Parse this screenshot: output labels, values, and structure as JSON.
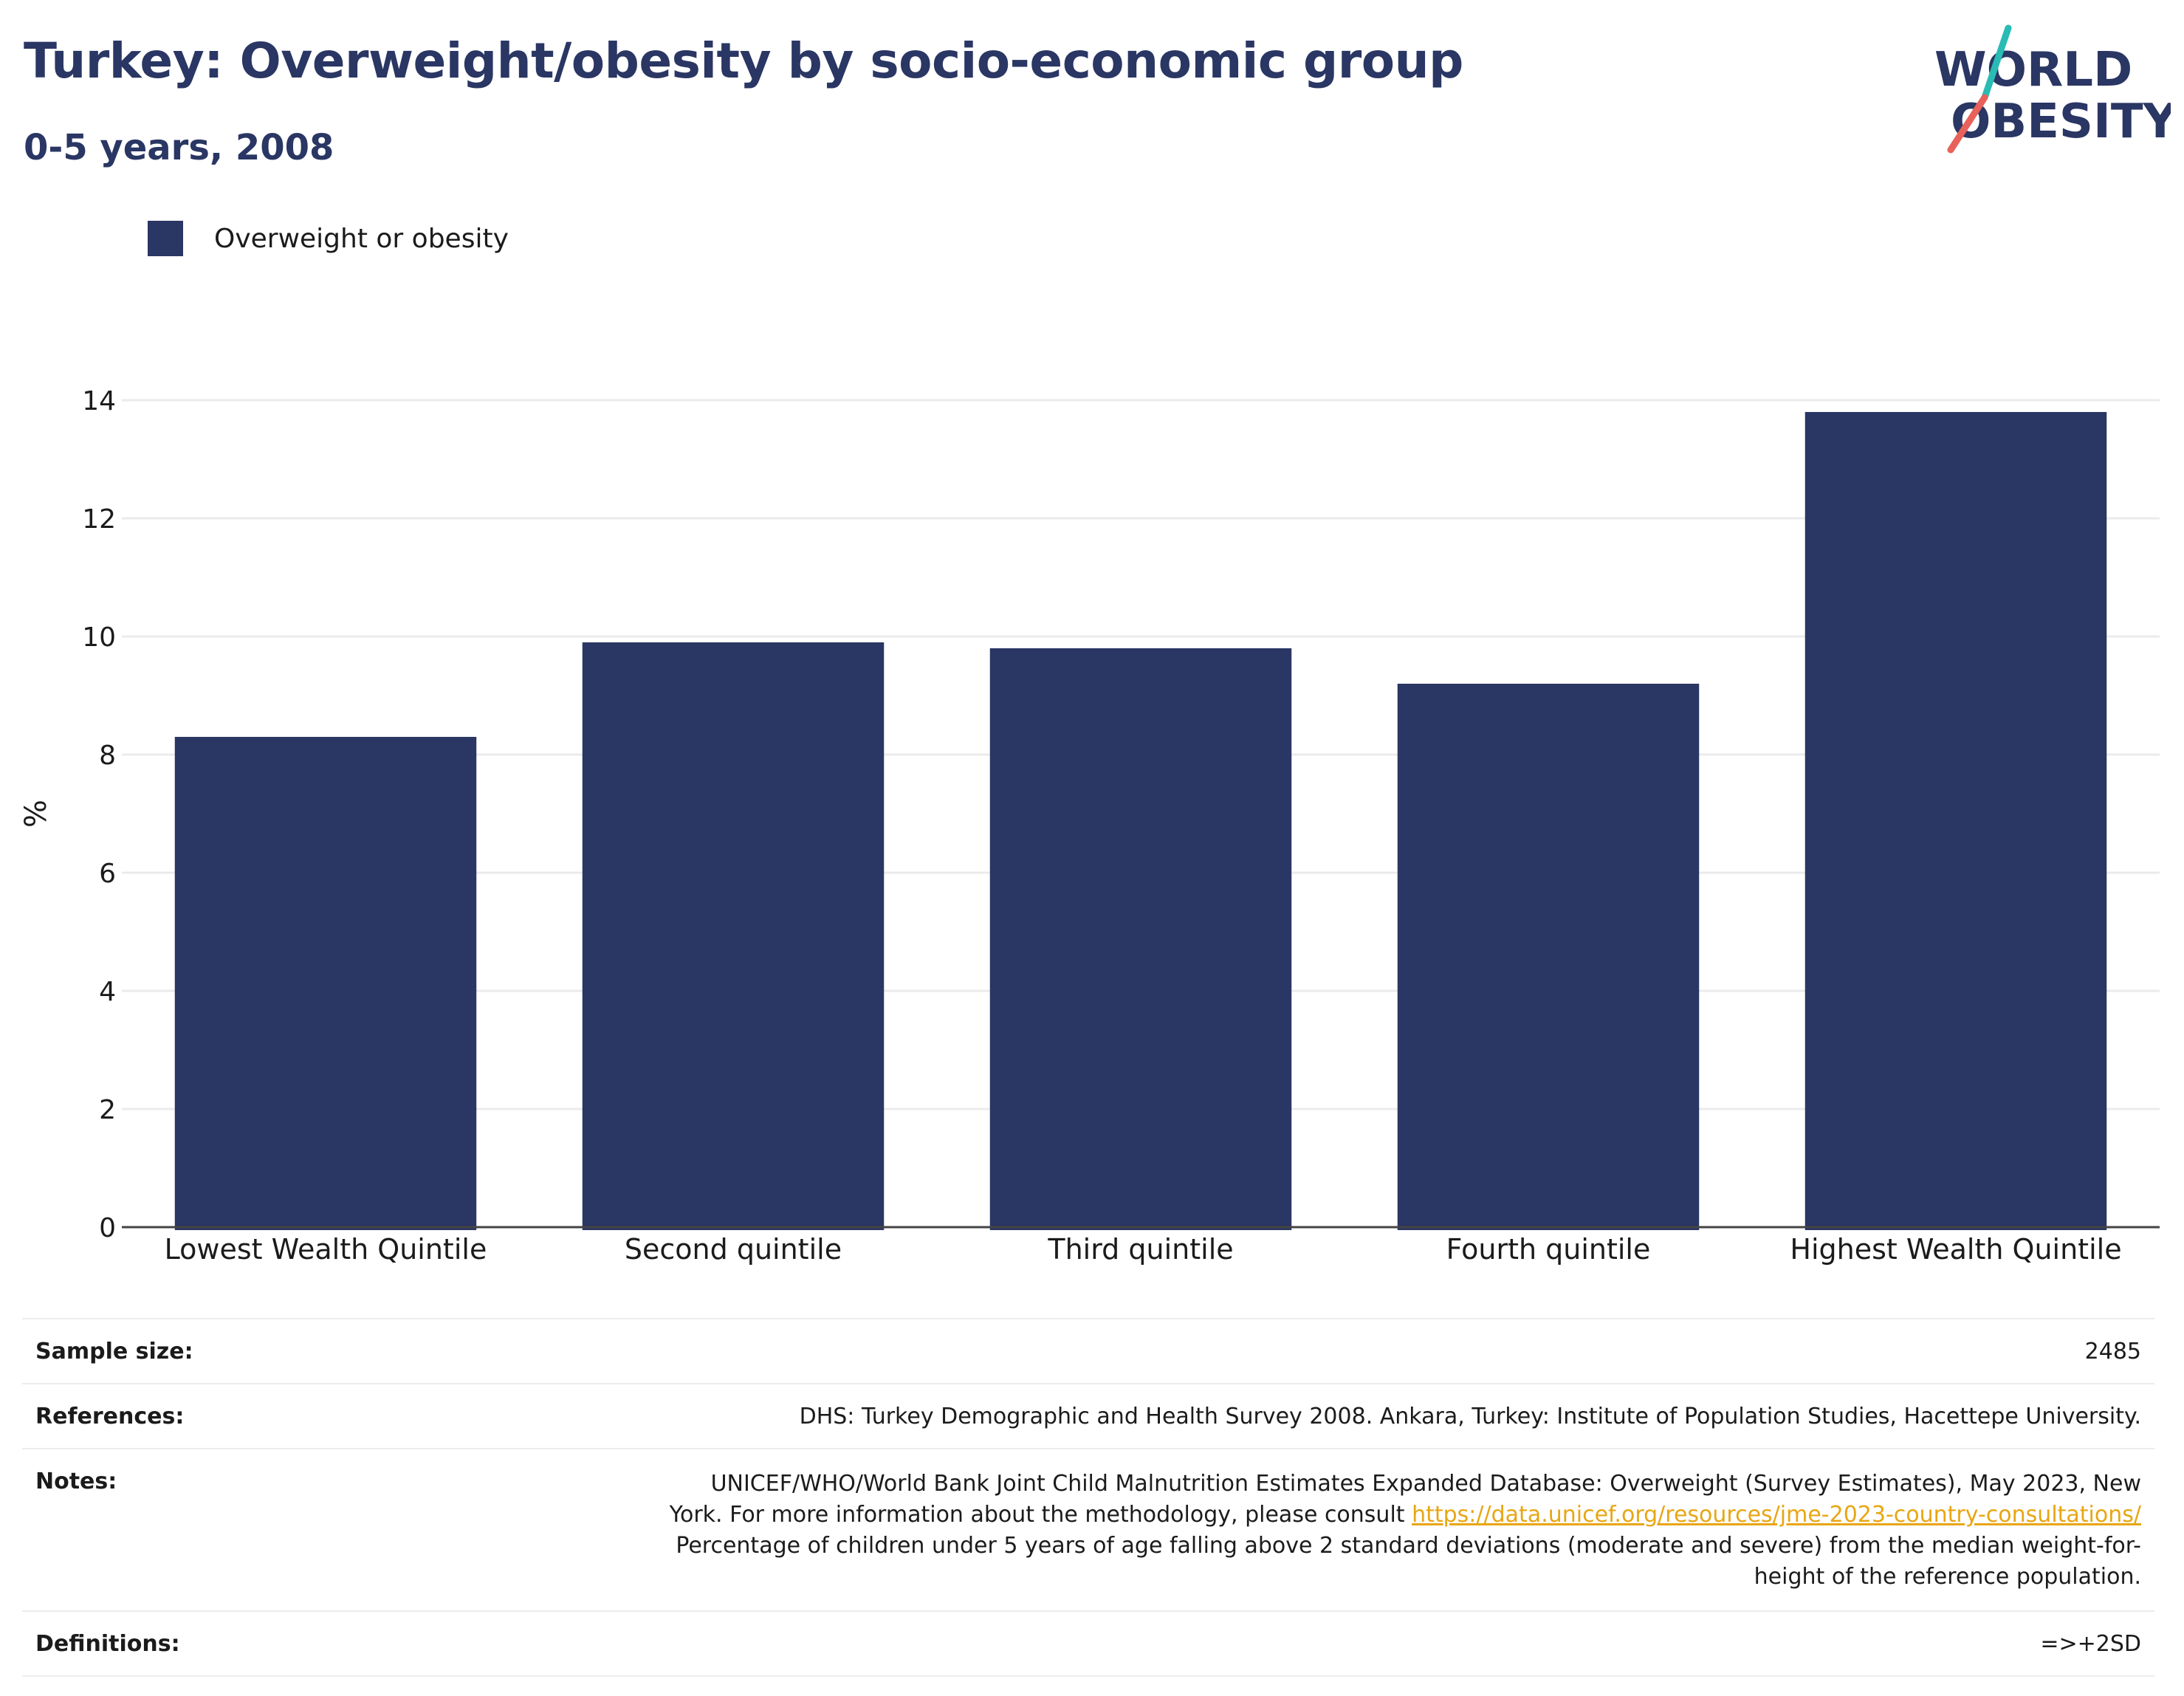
{
  "header": {
    "title": "Turkey: Overweight/obesity by socio-economic group",
    "subtitle": "0-5 years, 2008"
  },
  "logo": {
    "line1": "WORLD",
    "line2": "OBESITY",
    "colors": {
      "text": "#2a3663",
      "slash_teal": "#2bbbb5",
      "slash_coral": "#e8615a"
    }
  },
  "legend": {
    "label": "Overweight or obesity",
    "color": "#2a3663"
  },
  "chart_data": {
    "type": "bar",
    "categories": [
      "Lowest Wealth Quintile",
      "Second quintile",
      "Third quintile",
      "Fourth quintile",
      "Highest Wealth Quintile"
    ],
    "series": [
      {
        "name": "Overweight or obesity",
        "values": [
          8.3,
          9.9,
          9.8,
          9.2,
          13.8
        ],
        "color": "#2a3663"
      }
    ],
    "ylabel": "%",
    "xlabel": "",
    "ylim": [
      0,
      14
    ],
    "yticks": [
      0,
      2,
      4,
      6,
      8,
      10,
      12,
      14
    ],
    "grid": true,
    "legend_position": "top-left"
  },
  "footer": {
    "rows": [
      {
        "label": "Sample size:",
        "lines": [
          "2485"
        ]
      },
      {
        "label": "References:",
        "lines": [
          "DHS: Turkey Demographic and Health Survey 2008. Ankara, Turkey: Institute of Population Studies, Hacettepe University."
        ]
      },
      {
        "label": "Notes:",
        "lines": [
          "UNICEF/WHO/World Bank Joint Child Malnutrition Estimates Expanded Database: Overweight (Survey Estimates), May 2023, New",
          "York. For more information about the methodology, please consult ",
          "https://data.unicef.org/resources/jme-2023-country-consultations/",
          "Percentage of children under 5 years of age falling above 2 standard deviations (moderate and severe) from the median weight-for-",
          "height of the reference population."
        ]
      },
      {
        "label": "Definitions:",
        "lines": [
          "=>+2SD"
        ]
      }
    ]
  }
}
